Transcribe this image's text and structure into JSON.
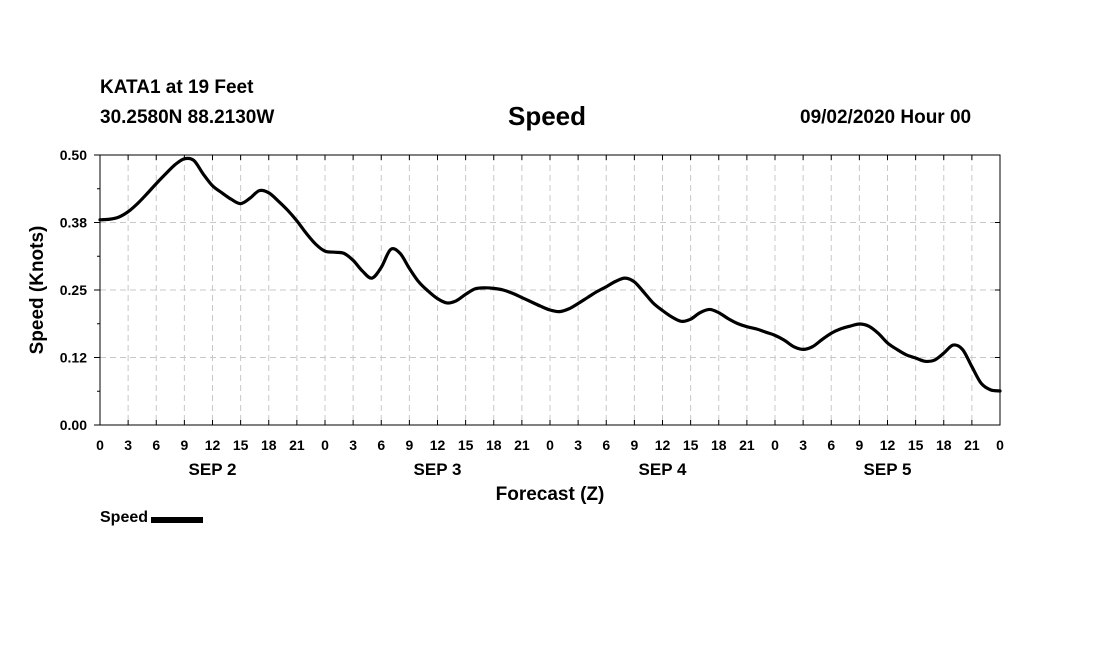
{
  "header": {
    "station": "KATA1 at 19 Feet",
    "coords": "30.2580N 88.2130W",
    "datetime": "09/02/2020 Hour 00"
  },
  "chart_data": {
    "type": "line",
    "title": "Speed",
    "xlabel": "Forecast (Z)",
    "ylabel": "Speed (Knots)",
    "ylim": [
      0,
      0.5
    ],
    "yticks": [
      "0.00",
      "0.12",
      "0.25",
      "0.38",
      "0.50"
    ],
    "xlim": [
      0,
      96
    ],
    "xtick_labels": [
      "0",
      "3",
      "6",
      "9",
      "12",
      "15",
      "18",
      "21",
      "0",
      "3",
      "6",
      "9",
      "12",
      "15",
      "18",
      "21",
      "0",
      "3",
      "6",
      "9",
      "12",
      "15",
      "18",
      "21",
      "0",
      "3",
      "6",
      "9",
      "12",
      "15",
      "18",
      "21",
      "0"
    ],
    "day_labels": [
      "SEP 2",
      "SEP 3",
      "SEP 4",
      "SEP 5"
    ],
    "grid": true,
    "legend": "bottom-left",
    "series": [
      {
        "name": "Speed",
        "color": "#000000",
        "x": [
          0,
          1,
          2,
          3,
          4,
          5,
          6,
          7,
          8,
          9,
          10,
          11,
          12,
          13,
          14,
          15,
          16,
          17,
          18,
          19,
          20,
          21,
          22,
          23,
          24,
          25,
          26,
          27,
          28,
          29,
          30,
          31,
          32,
          33,
          34,
          35,
          36,
          37,
          38,
          39,
          40,
          41,
          42,
          43,
          44,
          45,
          46,
          47,
          48,
          49,
          50,
          51,
          52,
          53,
          54,
          55,
          56,
          57,
          58,
          59,
          60,
          61,
          62,
          63,
          64,
          65,
          66,
          67,
          68,
          69,
          70,
          71,
          72,
          73,
          74,
          75,
          76,
          77,
          78,
          79,
          80,
          81,
          82,
          83,
          84,
          85,
          86,
          87,
          88,
          89,
          90,
          91,
          92,
          93,
          94,
          95,
          96
        ],
        "values": [
          0.38,
          0.381,
          0.385,
          0.395,
          0.41,
          0.428,
          0.447,
          0.465,
          0.482,
          0.493,
          0.49,
          0.465,
          0.443,
          0.43,
          0.418,
          0.41,
          0.42,
          0.434,
          0.43,
          0.415,
          0.398,
          0.378,
          0.355,
          0.335,
          0.322,
          0.32,
          0.318,
          0.305,
          0.285,
          0.272,
          0.292,
          0.325,
          0.318,
          0.29,
          0.265,
          0.248,
          0.234,
          0.226,
          0.23,
          0.242,
          0.252,
          0.254,
          0.253,
          0.25,
          0.244,
          0.236,
          0.228,
          0.22,
          0.213,
          0.21,
          0.215,
          0.225,
          0.236,
          0.247,
          0.256,
          0.266,
          0.272,
          0.265,
          0.246,
          0.226,
          0.212,
          0.2,
          0.192,
          0.196,
          0.208,
          0.214,
          0.208,
          0.197,
          0.188,
          0.182,
          0.178,
          0.172,
          0.166,
          0.157,
          0.145,
          0.14,
          0.145,
          0.158,
          0.17,
          0.178,
          0.183,
          0.187,
          0.183,
          0.17,
          0.152,
          0.14,
          0.13,
          0.124,
          0.118,
          0.12,
          0.133,
          0.148,
          0.14,
          0.108,
          0.077,
          0.065,
          0.063
        ]
      }
    ]
  }
}
